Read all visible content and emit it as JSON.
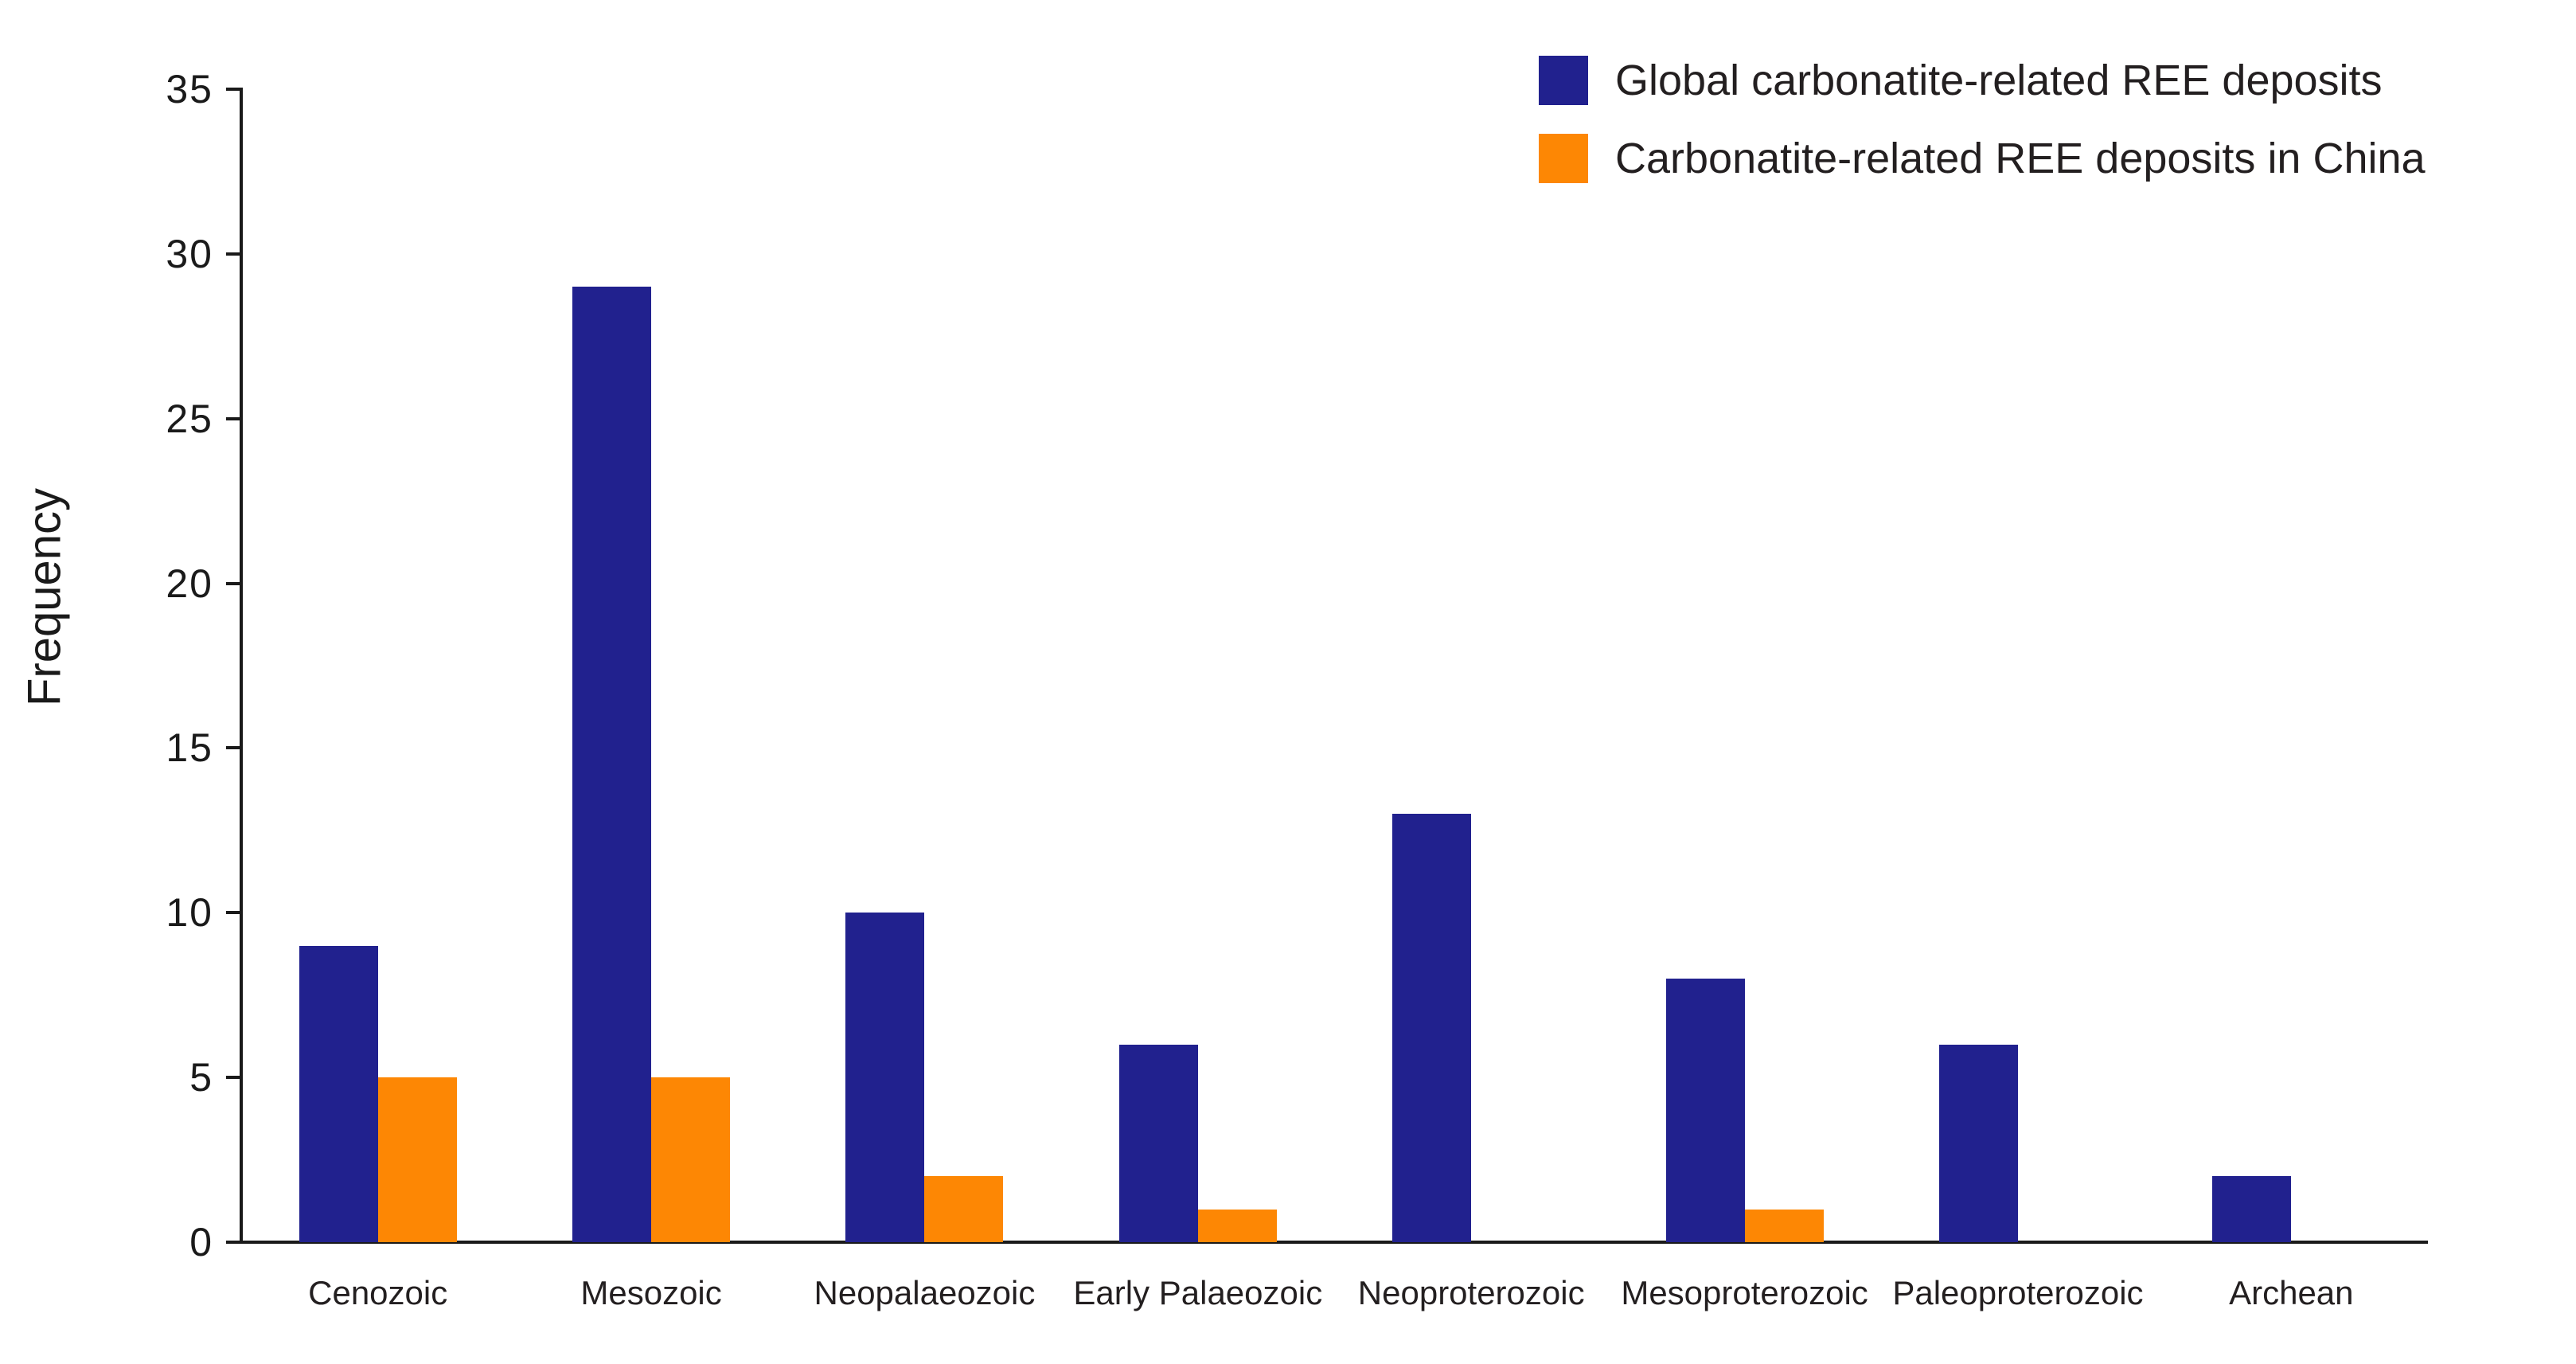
{
  "chart_data": {
    "type": "bar",
    "categories": [
      "Cenozoic",
      "Mesozoic",
      "Neopalaeozoic",
      "Early Palaeozoic",
      "Neoproterozoic",
      "Mesoproterozoic",
      "Paleoproterozoic",
      "Archean"
    ],
    "series": [
      {
        "name": "Global carbonatite-related REE deposits",
        "color": "#21218e",
        "values": [
          9,
          29,
          10,
          6,
          13,
          8,
          6,
          2
        ]
      },
      {
        "name": "Carbonatite-related REE deposits in China",
        "color": "#fd8704",
        "values": [
          5,
          5,
          2,
          1,
          0,
          1,
          0,
          0
        ]
      }
    ],
    "title": "",
    "xlabel": "",
    "ylabel": "Frequency",
    "ylim": [
      0,
      35
    ],
    "yticks": [
      0,
      5,
      10,
      15,
      20,
      25,
      30,
      35
    ],
    "grid": false,
    "legend_position": "top-right",
    "axis_color": "#1a1a1a"
  }
}
